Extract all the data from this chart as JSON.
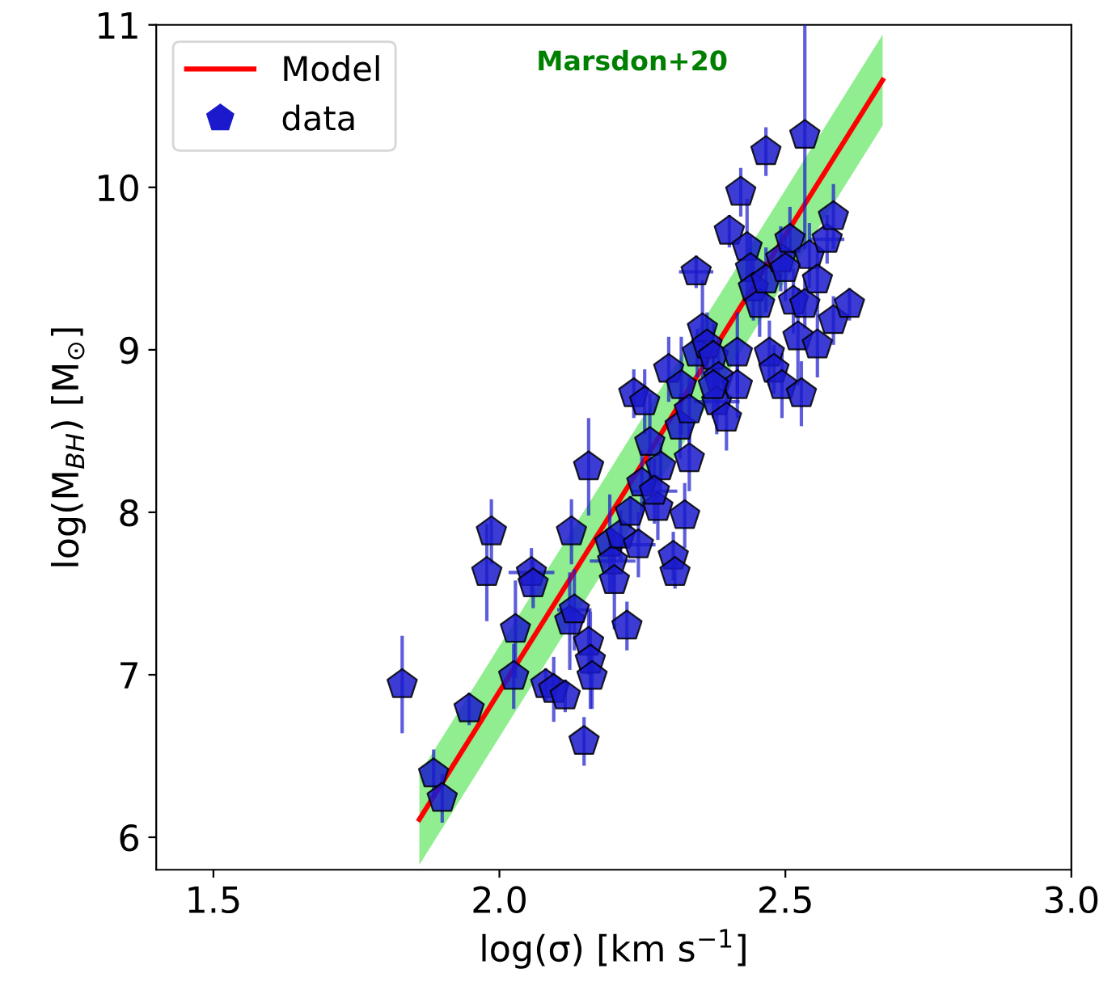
{
  "chart_data": {
    "type": "scatter",
    "xlabel": "log(σ) [km s$^{−1}$]",
    "ylabel": "log(M$_{BH}$) [M$_{⊙}$]",
    "annotations": [
      "Marsdon+20"
    ],
    "xlim": [
      1.4,
      3.0
    ],
    "ylim": [
      5.8,
      11
    ],
    "xticks": [
      1.5,
      {
        "value": 2.0,
        "label": "2.0"
      },
      2.5,
      {
        "value": 3.0,
        "label": "3.0"
      }
    ],
    "yticks": [
      6,
      7,
      8,
      9,
      10,
      11
    ],
    "grid": false,
    "legend": "top left",
    "series": [
      {
        "name": "Model",
        "type": "line",
        "color": "#ff0000",
        "x": [
          1.86,
          2.67
        ],
        "values": [
          6.11,
          10.66
        ],
        "lower": [
          5.83,
          10.38
        ],
        "upper": [
          6.39,
          10.94
        ]
      },
      {
        "name": "data",
        "color": "#1a1acc",
        "x": [
          1.83,
          1.885,
          1.9,
          1.947,
          1.986,
          1.978,
          2.025,
          2.028,
          2.056,
          2.059,
          2.081,
          2.095,
          2.115,
          2.126,
          2.123,
          2.131,
          2.148,
          2.156,
          2.156,
          2.159,
          2.162,
          2.193,
          2.198,
          2.201,
          2.212,
          2.223,
          2.229,
          2.249,
          2.243,
          2.235,
          2.254,
          2.263,
          2.277,
          2.282,
          2.296,
          2.304,
          2.307,
          2.316,
          2.318,
          2.324,
          2.332,
          2.346,
          2.344,
          2.355,
          2.363,
          2.374,
          2.383,
          2.38,
          2.397,
          2.402,
          2.416,
          2.422,
          2.433,
          2.439,
          2.444,
          2.455,
          2.466,
          2.466,
          2.472,
          2.48,
          2.492,
          2.5,
          2.508,
          2.514,
          2.522,
          2.534,
          2.542,
          2.556,
          2.573,
          2.584,
          2.534,
          2.584,
          2.612,
          2.494,
          2.528,
          2.556,
          2.416,
          2.374,
          2.332,
          2.271
        ],
        "values": [
          6.94,
          6.39,
          6.24,
          6.79,
          7.88,
          7.63,
          6.99,
          7.28,
          7.63,
          7.56,
          6.94,
          6.91,
          6.87,
          7.88,
          7.33,
          7.4,
          6.59,
          8.28,
          7.2,
          7.09,
          6.99,
          7.81,
          7.7,
          7.58,
          7.86,
          7.3,
          8.0,
          8.18,
          7.8,
          8.73,
          8.68,
          8.43,
          8.03,
          8.28,
          8.88,
          7.73,
          7.63,
          8.53,
          8.78,
          7.98,
          8.63,
          8.98,
          9.48,
          9.13,
          9.03,
          8.96,
          8.83,
          8.68,
          8.58,
          9.73,
          8.78,
          9.97,
          9.63,
          9.5,
          9.38,
          9.28,
          9.43,
          10.22,
          8.98,
          8.88,
          9.56,
          9.5,
          9.68,
          9.3,
          9.08,
          9.28,
          9.58,
          9.43,
          9.68,
          9.82,
          10.32,
          9.18,
          9.28,
          8.78,
          8.73,
          9.03,
          8.98,
          8.78,
          8.33,
          8.13
        ],
        "errors": [
          0.3,
          0.15,
          0.15,
          0.1,
          0.2,
          0.3,
          0.2,
          0.3,
          0.15,
          0.15,
          0.1,
          0.2,
          0.1,
          0.2,
          0.3,
          0.25,
          0.15,
          0.3,
          0.2,
          0.3,
          0.2,
          0.3,
          0.2,
          0.3,
          0.15,
          0.15,
          0.1,
          0.2,
          0.2,
          0.15,
          0.2,
          0.3,
          0.2,
          0.15,
          0.2,
          0.15,
          0.1,
          0.2,
          0.3,
          0.2,
          0.2,
          0.15,
          0.1,
          0.3,
          0.2,
          0.2,
          0.2,
          0.2,
          0.2,
          0.1,
          0.2,
          0.15,
          0.3,
          0.2,
          0.2,
          0.2,
          0.2,
          0.15,
          0.2,
          0.15,
          0.2,
          0.2,
          0.2,
          0.2,
          0.3,
          0.15,
          0.2,
          0.2,
          0.15,
          0.2,
          0.7,
          0.15,
          0.1,
          0.2,
          0.2,
          0.2,
          0.25,
          0.2,
          0.2,
          0.2
        ],
        "xerrors": [
          null,
          null,
          null,
          null,
          null,
          null,
          null,
          null,
          0.04,
          null,
          null,
          null,
          null,
          null,
          null,
          0.03,
          null,
          null,
          null,
          null,
          null,
          null,
          0.04,
          null,
          null,
          null,
          null,
          null,
          0.03,
          null,
          null,
          null,
          null,
          null,
          null,
          null,
          null,
          null,
          null,
          null,
          null,
          null,
          0.03,
          null,
          null,
          null,
          null,
          0.04,
          null,
          null,
          null,
          null,
          null,
          null,
          null,
          null,
          null,
          null,
          null,
          null,
          null,
          null,
          null,
          null,
          null,
          null,
          null,
          null,
          0.03,
          null,
          null,
          null,
          null,
          null,
          null,
          null,
          null,
          null,
          null,
          0.04
        ]
      }
    ]
  }
}
